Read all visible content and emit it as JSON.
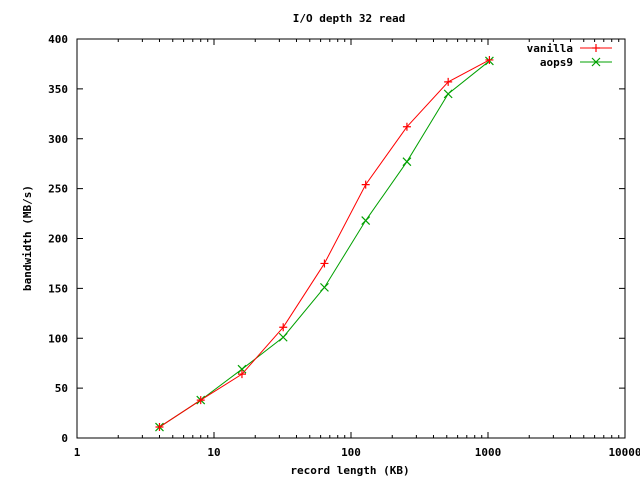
{
  "chart_data": {
    "type": "line",
    "title": "I/O depth 32 read",
    "xlabel": "record length (KB)",
    "ylabel": "bandwidth (MB/s)",
    "xscale": "log",
    "xlim": [
      1,
      10000
    ],
    "ylim": [
      0,
      400
    ],
    "x_ticks": [
      1,
      10,
      100,
      1000,
      10000
    ],
    "x_tick_labels": [
      "1",
      "10",
      "100",
      "1000",
      "10000"
    ],
    "y_ticks": [
      0,
      50,
      100,
      150,
      200,
      250,
      300,
      350,
      400
    ],
    "y_tick_labels": [
      "0",
      "50",
      "100",
      "150",
      "200",
      "250",
      "300",
      "350",
      "400"
    ],
    "grid": false,
    "legend_position": "top-right",
    "x": [
      4,
      8,
      16,
      32,
      64,
      128,
      256,
      512,
      1024
    ],
    "series": [
      {
        "name": "vanilla",
        "color": "#ff0000",
        "marker": "plus",
        "values": [
          11,
          38,
          64,
          111,
          175,
          254,
          312,
          357,
          379
        ]
      },
      {
        "name": "aops9",
        "color": "#00a000",
        "marker": "cross",
        "values": [
          11,
          38,
          69,
          101,
          151,
          218,
          277,
          345,
          378
        ]
      }
    ]
  }
}
